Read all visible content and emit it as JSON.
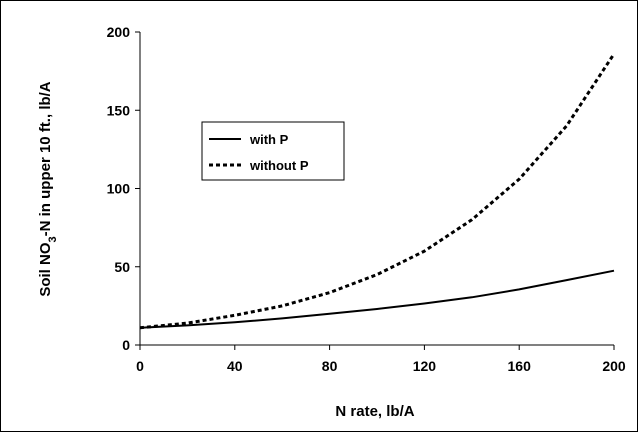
{
  "chart_data": {
    "type": "line",
    "title": "",
    "xlabel": "N rate, lb/A",
    "ylabel": "Soil NO3-N in upper 10 ft., lb/A",
    "ylabel_parts": {
      "before": "Soil NO",
      "subscript": "3",
      "after": "-N in upper 10 ft., lb/A"
    },
    "xlim": [
      0,
      200
    ],
    "ylim": [
      0,
      200
    ],
    "xticks": [
      0,
      40,
      80,
      120,
      160,
      200
    ],
    "yticks": [
      0,
      50,
      100,
      150,
      200
    ],
    "grid": false,
    "legend_position": "upper-left",
    "series": [
      {
        "name": "with P",
        "style": "solid",
        "color": "#000000",
        "x": [
          0,
          20,
          40,
          60,
          80,
          100,
          120,
          140,
          160,
          180,
          200
        ],
        "y": [
          11,
          12.5,
          14.5,
          17,
          20,
          23,
          26.5,
          30.5,
          35.5,
          41.5,
          47.5
        ]
      },
      {
        "name": "without P",
        "style": "dashed",
        "color": "#000000",
        "x": [
          0,
          20,
          40,
          60,
          80,
          100,
          120,
          140,
          160,
          180,
          200
        ],
        "y": [
          11,
          14,
          19,
          25,
          33.5,
          45,
          60,
          80,
          106,
          140,
          186
        ]
      }
    ]
  }
}
